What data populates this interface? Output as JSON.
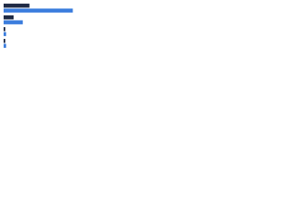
{
  "chart_data": {
    "type": "bar",
    "orientation": "horizontal",
    "categories": [
      null,
      null,
      null,
      null
    ],
    "series": [
      {
        "name": null,
        "color": "#1f2a44",
        "values": [
          31,
          12,
          2,
          2
        ]
      },
      {
        "name": null,
        "color": "#3b7ddd",
        "values": [
          83,
          23,
          3,
          3
        ]
      }
    ],
    "xlim": [
      0,
      100
    ]
  }
}
